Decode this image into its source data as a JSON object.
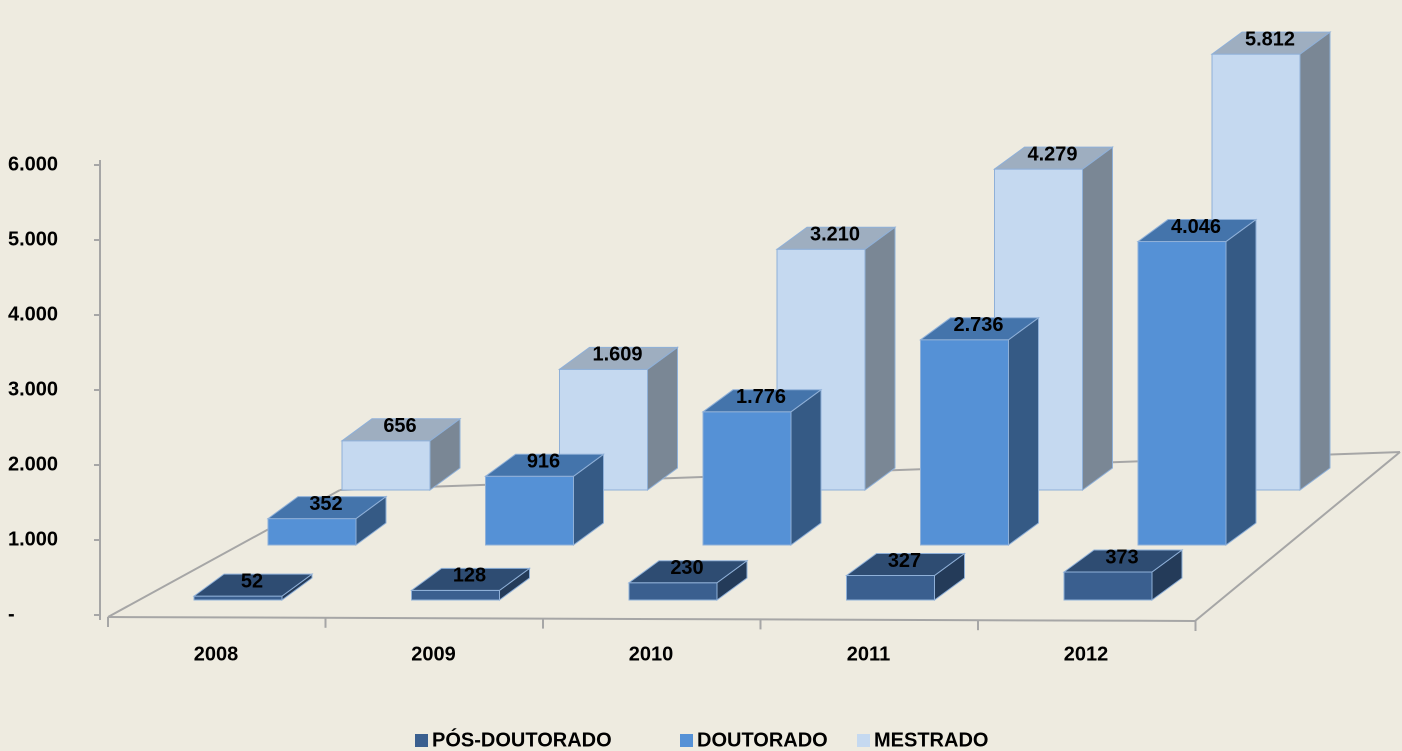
{
  "chart_data": {
    "type": "bar3d",
    "categories": [
      "2008",
      "2009",
      "2010",
      "2011",
      "2012"
    ],
    "series": [
      {
        "name": "PÓS-DOUTORADO",
        "color": "#3a5f8f",
        "values": [
          52,
          128,
          230,
          327,
          373
        ],
        "value_labels": [
          "52",
          "128",
          "230",
          "327",
          "373"
        ]
      },
      {
        "name": "DOUTORADO",
        "color": "#5591d6",
        "values": [
          352,
          916,
          1776,
          2736,
          4046
        ],
        "value_labels": [
          "352",
          "916",
          "1.776",
          "2.736",
          "4.046"
        ]
      },
      {
        "name": "MESTRADO",
        "color": "#c5d9f0",
        "values": [
          656,
          1609,
          3210,
          4279,
          5812
        ],
        "value_labels": [
          "656",
          "1.609",
          "3.210",
          "4.279",
          "5.812"
        ]
      }
    ],
    "ylim": [
      0,
      6000
    ],
    "yticks": [
      {
        "value": 0,
        "label": "-"
      },
      {
        "value": 1000,
        "label": "1.000"
      },
      {
        "value": 2000,
        "label": "2.000"
      },
      {
        "value": 3000,
        "label": "3.000"
      },
      {
        "value": 4000,
        "label": "4.000"
      },
      {
        "value": 5000,
        "label": "5.000"
      },
      {
        "value": 6000,
        "label": "6.000"
      }
    ],
    "legend": "bottom"
  }
}
